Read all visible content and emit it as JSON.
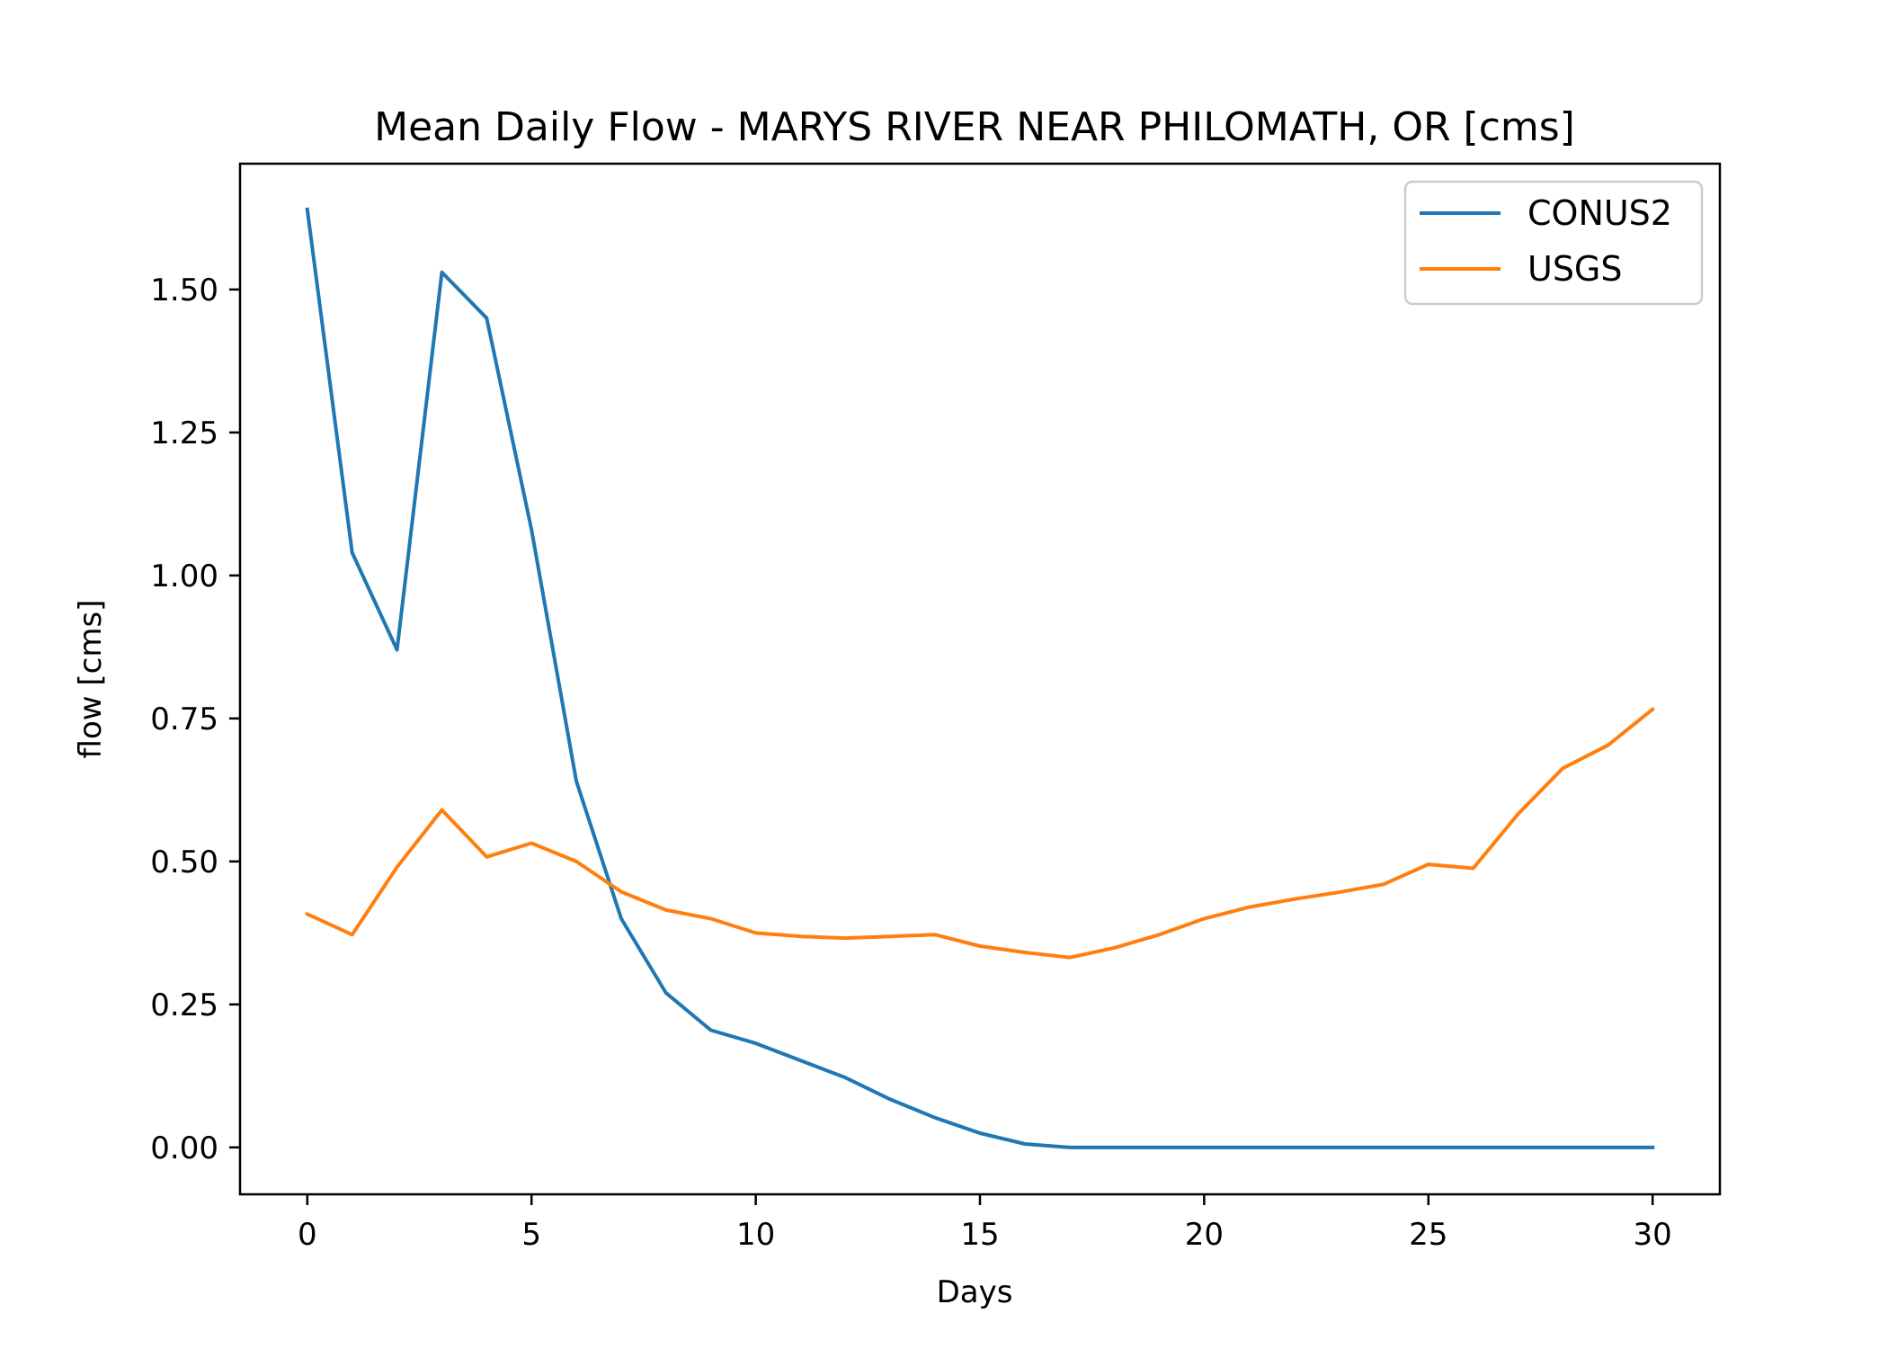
{
  "chart_data": {
    "type": "line",
    "title": "Mean Daily Flow - MARYS RIVER NEAR PHILOMATH, OR [cms]",
    "xlabel": "Days",
    "ylabel": "flow [cms]",
    "xlim": [
      -1.5,
      31.5
    ],
    "ylim": [
      -0.082,
      1.72
    ],
    "xticks": [
      0,
      5,
      10,
      15,
      20,
      25,
      30
    ],
    "yticks": [
      0.0,
      0.25,
      0.5,
      0.75,
      1.0,
      1.25,
      1.5
    ],
    "ytick_labels": [
      "0.00",
      "0.25",
      "0.50",
      "0.75",
      "1.00",
      "1.25",
      "1.50"
    ],
    "xtick_labels": [
      "0",
      "5",
      "10",
      "15",
      "20",
      "25",
      "30"
    ],
    "grid": false,
    "legend": "top-right",
    "x": [
      0,
      1,
      2,
      3,
      4,
      5,
      6,
      7,
      8,
      9,
      10,
      11,
      12,
      13,
      14,
      15,
      16,
      17,
      18,
      19,
      20,
      21,
      22,
      23,
      24,
      25,
      26,
      27,
      28,
      29,
      30
    ],
    "series": [
      {
        "name": "CONUS2",
        "color": "#1f77b4",
        "values": [
          1.64,
          1.04,
          0.87,
          1.53,
          1.45,
          1.08,
          0.64,
          0.4,
          0.27,
          0.205,
          0.182,
          0.152,
          0.122,
          0.084,
          0.052,
          0.025,
          0.006,
          0.0,
          0.0,
          0.0,
          0.0,
          0.0,
          0.0,
          0.0,
          0.0,
          0.0,
          0.0,
          0.0,
          0.0,
          0.0,
          0.0
        ]
      },
      {
        "name": "USGS",
        "color": "#ff7f0e",
        "values": [
          0.408,
          0.372,
          0.49,
          0.59,
          0.508,
          0.532,
          0.5,
          0.447,
          0.415,
          0.4,
          0.375,
          0.369,
          0.366,
          0.369,
          0.372,
          0.352,
          0.341,
          0.332,
          0.349,
          0.372,
          0.4,
          0.42,
          0.434,
          0.446,
          0.46,
          0.495,
          0.488,
          0.583,
          0.663,
          0.703,
          0.766
        ]
      }
    ]
  }
}
